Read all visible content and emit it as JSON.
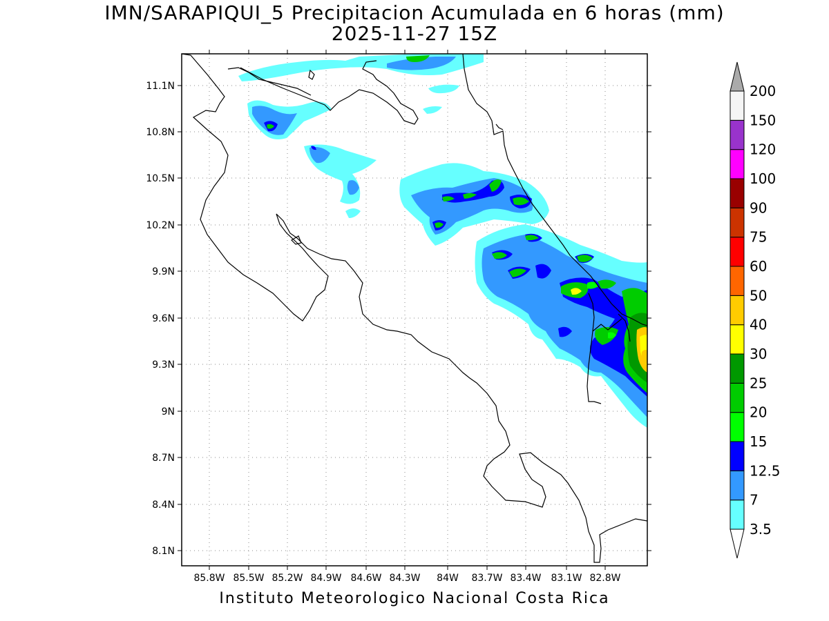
{
  "title": {
    "line1": "IMN/SARAPIQUI_5 Precipitacion Acumulada en 6 horas (mm)",
    "line2": "2025-11-27 15Z"
  },
  "footer": "Instituto Meteorologico Nacional Costa Rica",
  "axes": {
    "lat_ticks": [
      "11.1N",
      "10.8N",
      "10.5N",
      "10.2N",
      "9.9N",
      "9.6N",
      "9.3N",
      "9N",
      "8.7N",
      "8.4N",
      "8.1N"
    ],
    "lon_ticks": [
      "85.8W",
      "85.5W",
      "85.2W",
      "84.9W",
      "84.6W",
      "84.3W",
      "84W",
      "83.7W",
      "83.4W",
      "83.1W",
      "82.8W"
    ]
  },
  "colorbar": {
    "labels": [
      "3.5",
      "7",
      "12.5",
      "15",
      "20",
      "25",
      "30",
      "40",
      "50",
      "60",
      "75",
      "90",
      "100",
      "120",
      "150",
      "200"
    ],
    "colors": [
      "#ffffff",
      "#66ffff",
      "#3399ff",
      "#0000ff",
      "#00ff00",
      "#00cc00",
      "#009900",
      "#ffff00",
      "#ffcc00",
      "#ff6600",
      "#ff0000",
      "#cc3300",
      "#990000",
      "#ff00ff",
      "#9933cc",
      "#f5f5f5",
      "#aaaaaa"
    ]
  }
}
